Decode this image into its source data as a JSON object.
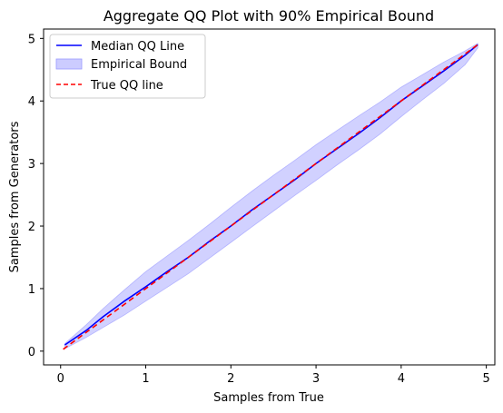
{
  "chart_data": {
    "type": "line",
    "title": "Aggregate QQ Plot with 90% Empirical Bound",
    "xlabel": "Samples from True",
    "ylabel": "Samples from Generators",
    "xlim": [
      -0.2,
      5.1
    ],
    "ylim": [
      -0.22,
      5.15
    ],
    "xticks": [
      "0",
      "1",
      "2",
      "3",
      "4",
      "5"
    ],
    "yticks": [
      "0",
      "1",
      "2",
      "3",
      "4",
      "5"
    ],
    "grid": false,
    "legend_position": "top-left",
    "series": [
      {
        "name": "Median QQ Line",
        "kind": "line",
        "color": "#0000ff",
        "style": "solid",
        "x": [
          0.05,
          0.3,
          0.5,
          0.75,
          1.0,
          1.25,
          1.5,
          1.75,
          2.0,
          2.25,
          2.5,
          2.75,
          3.0,
          3.25,
          3.5,
          3.75,
          4.0,
          4.25,
          4.5,
          4.75,
          4.9
        ],
        "y": [
          0.1,
          0.33,
          0.55,
          0.8,
          1.03,
          1.27,
          1.5,
          1.76,
          2.0,
          2.26,
          2.5,
          2.74,
          3.0,
          3.24,
          3.48,
          3.73,
          4.0,
          4.24,
          4.48,
          4.73,
          4.9
        ]
      },
      {
        "name": "Empirical Bound",
        "kind": "band",
        "color": "#ccccff",
        "x": [
          0.05,
          0.3,
          0.5,
          0.75,
          1.0,
          1.25,
          1.5,
          1.75,
          2.0,
          2.25,
          2.5,
          2.75,
          3.0,
          3.25,
          3.5,
          3.75,
          4.0,
          4.25,
          4.5,
          4.75,
          4.9
        ],
        "lower": [
          0.04,
          0.22,
          0.38,
          0.58,
          0.8,
          1.02,
          1.24,
          1.49,
          1.74,
          1.99,
          2.24,
          2.49,
          2.73,
          2.98,
          3.22,
          3.47,
          3.75,
          4.02,
          4.28,
          4.58,
          4.85
        ],
        "upper": [
          0.12,
          0.42,
          0.68,
          0.98,
          1.27,
          1.52,
          1.77,
          2.03,
          2.3,
          2.56,
          2.81,
          3.05,
          3.3,
          3.53,
          3.76,
          3.98,
          4.22,
          4.42,
          4.62,
          4.8,
          4.92
        ]
      },
      {
        "name": "True QQ line",
        "kind": "line",
        "color": "#ff0000",
        "style": "dashed",
        "x": [
          0.03,
          4.9
        ],
        "y": [
          0.03,
          4.9
        ]
      }
    ]
  }
}
